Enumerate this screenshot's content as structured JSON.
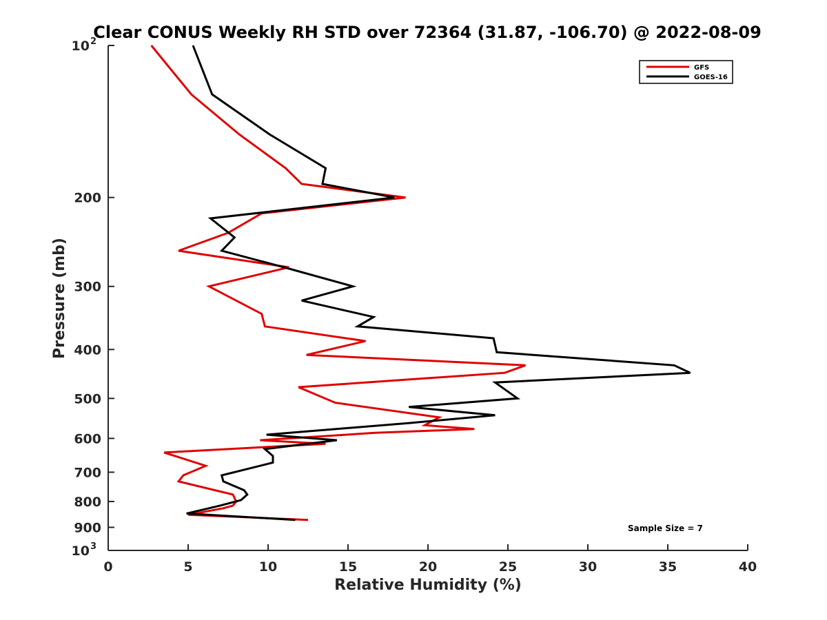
{
  "chart_data": {
    "type": "line",
    "title": "Clear CONUS Weekly RH STD over 72364 (31.87, -106.70) @ 2022-08-09",
    "xlabel": "Relative Humidity (%)",
    "ylabel": "Pressure (mb)",
    "xlim": [
      0,
      40
    ],
    "ylim": [
      100,
      1000
    ],
    "yscale": "log",
    "yreversed": true,
    "x_ticks": [
      0,
      5,
      10,
      15,
      20,
      25,
      30,
      35,
      40
    ],
    "x_tick_labels": [
      "0",
      "5",
      "10",
      "15",
      "20",
      "25",
      "30",
      "35",
      "40"
    ],
    "y_ticks": [
      200,
      300,
      400,
      500,
      600,
      700,
      800,
      900
    ],
    "y_tick_labels": [
      "200",
      "300",
      "400",
      "500",
      "600",
      "700",
      "800",
      "900"
    ],
    "y_edge_labels": [
      {
        "value": 100,
        "base": "10",
        "exp": "2"
      },
      {
        "value": 1000,
        "base": "10",
        "exp": "3"
      }
    ],
    "grid": false,
    "legend_position": "top-right",
    "series": [
      {
        "name": "GFS",
        "color": "#e00000",
        "points": [
          [
            2.7,
            100
          ],
          [
            5.2,
            125
          ],
          [
            8.2,
            150
          ],
          [
            11.1,
            175
          ],
          [
            12.1,
            188
          ],
          [
            18.6,
            200
          ],
          [
            9.6,
            215
          ],
          [
            7.5,
            235
          ],
          [
            4.4,
            255
          ],
          [
            11.3,
            275
          ],
          [
            6.3,
            300
          ],
          [
            9.6,
            340
          ],
          [
            9.8,
            360
          ],
          [
            16.1,
            385
          ],
          [
            12.4,
            410
          ],
          [
            26.1,
            430
          ],
          [
            24.8,
            445
          ],
          [
            11.9,
            475
          ],
          [
            14.2,
            510
          ],
          [
            20.7,
            545
          ],
          [
            19.8,
            565
          ],
          [
            22.9,
            575
          ],
          [
            16.7,
            585
          ],
          [
            9.5,
            605
          ],
          [
            13.6,
            615
          ],
          [
            3.5,
            640
          ],
          [
            6.1,
            680
          ],
          [
            4.7,
            710
          ],
          [
            4.4,
            730
          ],
          [
            7.8,
            775
          ],
          [
            8.0,
            800
          ],
          [
            7.8,
            815
          ],
          [
            7.2,
            825
          ],
          [
            5.0,
            850
          ],
          [
            12.5,
            870
          ]
        ]
      },
      {
        "name": "GOES-16",
        "color": "#000000",
        "points": [
          [
            5.3,
            100
          ],
          [
            6.5,
            125
          ],
          [
            10.1,
            150
          ],
          [
            13.6,
            175
          ],
          [
            13.4,
            188
          ],
          [
            17.9,
            200
          ],
          [
            6.4,
            220
          ],
          [
            7.9,
            240
          ],
          [
            7.1,
            255
          ],
          [
            11.0,
            275
          ],
          [
            15.3,
            300
          ],
          [
            12.1,
            320
          ],
          [
            16.6,
            345
          ],
          [
            15.6,
            360
          ],
          [
            24.1,
            380
          ],
          [
            24.3,
            405
          ],
          [
            35.4,
            430
          ],
          [
            36.4,
            445
          ],
          [
            24.2,
            465
          ],
          [
            25.6,
            500
          ],
          [
            18.8,
            520
          ],
          [
            24.2,
            540
          ],
          [
            18.7,
            560
          ],
          [
            9.9,
            590
          ],
          [
            14.3,
            605
          ],
          [
            9.8,
            630
          ],
          [
            10.3,
            650
          ],
          [
            10.3,
            670
          ],
          [
            7.1,
            710
          ],
          [
            7.2,
            730
          ],
          [
            8.5,
            760
          ],
          [
            8.7,
            775
          ],
          [
            8.3,
            795
          ],
          [
            7.0,
            815
          ],
          [
            4.9,
            845
          ],
          [
            11.7,
            870
          ]
        ]
      }
    ],
    "annotation": "Sample Size = 7"
  }
}
